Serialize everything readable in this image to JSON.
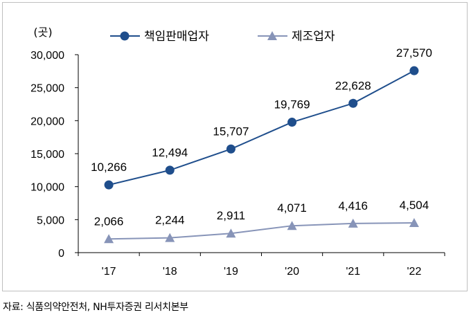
{
  "chart_data": {
    "type": "line",
    "unit_label": "(곳)",
    "categories": [
      "'17",
      "'18",
      "'19",
      "'20",
      "'21",
      "'22"
    ],
    "y_ticks": [
      "0",
      "5,000",
      "10,000",
      "15,000",
      "20,000",
      "25,000",
      "30,000"
    ],
    "ylim": [
      0,
      30000
    ],
    "grid": false,
    "legend_position": "top",
    "series": [
      {
        "name": "책임판매업자",
        "values": [
          10266,
          12494,
          15707,
          19769,
          22628,
          27570
        ],
        "labels": [
          "10,266",
          "12,494",
          "15,707",
          "19,769",
          "22,628",
          "27,570"
        ],
        "color": "#1f4e8c",
        "marker": "circle"
      },
      {
        "name": "제조업자",
        "values": [
          2066,
          2244,
          2911,
          4071,
          4416,
          4504
        ],
        "labels": [
          "2,066",
          "2,244",
          "2,911",
          "4,071",
          "4,416",
          "4,504"
        ],
        "color": "#8794b8",
        "marker": "triangle"
      }
    ]
  },
  "source": "자료: 식품의약안전처, NH투자증권 리서치본부"
}
